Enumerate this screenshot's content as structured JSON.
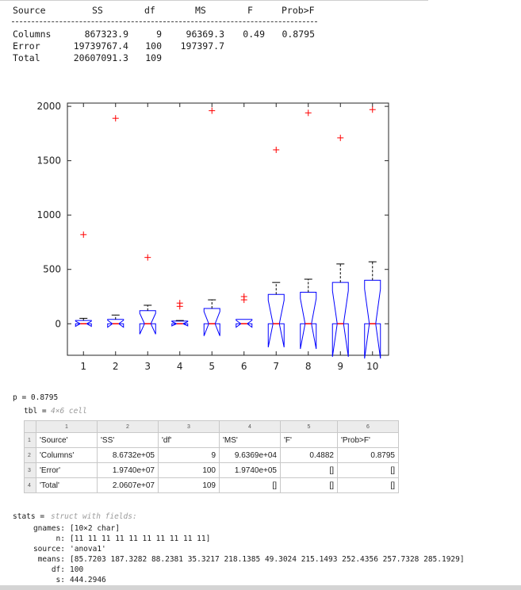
{
  "anova": {
    "headers": [
      "Source",
      "SS",
      "df",
      "MS",
      "F",
      "Prob>F"
    ],
    "rows": [
      [
        "Columns",
        "867323.9",
        "9",
        "96369.3",
        "0.49",
        "0.8795"
      ],
      [
        "Error",
        "19739767.4",
        "100",
        "197397.7",
        "",
        ""
      ],
      [
        "Total",
        "20607091.3",
        "109",
        "",
        "",
        ""
      ]
    ]
  },
  "chart_data": {
    "type": "boxplot",
    "categories": [
      "1",
      "2",
      "3",
      "4",
      "5",
      "6",
      "7",
      "8",
      "9",
      "10"
    ],
    "y_ticks": [
      "0",
      "500",
      "1000",
      "1500",
      "2000"
    ],
    "ylim": [
      -290,
      2030
    ],
    "notched": true,
    "box_color": "#0000ff",
    "median_color": "#ff0000",
    "outlier_color": "#ff0000",
    "boxes": [
      {
        "q1": 0,
        "median": 0,
        "q3": 30,
        "whisker_high": 50,
        "outliers": [
          820
        ]
      },
      {
        "q1": 0,
        "median": 0,
        "q3": 40,
        "whisker_high": 80,
        "outliers": [
          1890
        ]
      },
      {
        "q1": 0,
        "median": 0,
        "q3": 120,
        "whisker_high": 170,
        "outliers": [
          610
        ]
      },
      {
        "q1": 0,
        "median": 0,
        "q3": 25,
        "whisker_high": 30,
        "outliers": [
          160,
          190
        ]
      },
      {
        "q1": 0,
        "median": 0,
        "q3": 140,
        "whisker_high": 220,
        "outliers": [
          1960
        ]
      },
      {
        "q1": 0,
        "median": 0,
        "q3": 40,
        "whisker_high": 40,
        "outliers": [
          220,
          250
        ]
      },
      {
        "q1": 0,
        "median": 0,
        "q3": 270,
        "whisker_high": 380,
        "outliers": [
          1600
        ]
      },
      {
        "q1": 0,
        "median": 0,
        "q3": 290,
        "whisker_high": 410,
        "outliers": [
          1940
        ]
      },
      {
        "q1": 0,
        "median": 0,
        "q3": 380,
        "whisker_high": 550,
        "outliers": [
          1710
        ]
      },
      {
        "q1": 0,
        "median": 0,
        "q3": 400,
        "whisker_high": 570,
        "outliers": [
          1970
        ]
      }
    ]
  },
  "console": {
    "p_line": "p = 0.8795",
    "tbl_name": "tbl =",
    "tbl_type": "4×6 cell",
    "cell": {
      "col_headers": [
        "1",
        "2",
        "3",
        "4",
        "5",
        "6"
      ],
      "row_headers": [
        "1",
        "2",
        "3",
        "4"
      ],
      "rows": [
        [
          "'Source'",
          "'SS'",
          "'df'",
          "'MS'",
          "'F'",
          "'Prob>F'"
        ],
        [
          "'Columns'",
          "8.6732e+05",
          "9",
          "9.6369e+04",
          "0.4882",
          "0.8795"
        ],
        [
          "'Error'",
          "1.9740e+07",
          "100",
          "1.9740e+05",
          "[]",
          "[]"
        ],
        [
          "'Total'",
          "2.0607e+07",
          "109",
          "[]",
          "[]",
          "[]"
        ]
      ]
    },
    "stats_name": "stats =",
    "stats_type": "struct with fields:",
    "fields": [
      {
        "key": "gnames:",
        "value": "[10×2 char]"
      },
      {
        "key": "n:",
        "value": "[11 11 11 11 11 11 11 11 11 11]"
      },
      {
        "key": "source:",
        "value": "'anova1'"
      },
      {
        "key": "means:",
        "value": "[85.7203 187.3282 88.2381 35.3217 218.1385 49.3024 215.1493 252.4356 257.7328 285.1929]"
      },
      {
        "key": "df:",
        "value": "100"
      },
      {
        "key": "s:",
        "value": "444.2946"
      }
    ]
  }
}
